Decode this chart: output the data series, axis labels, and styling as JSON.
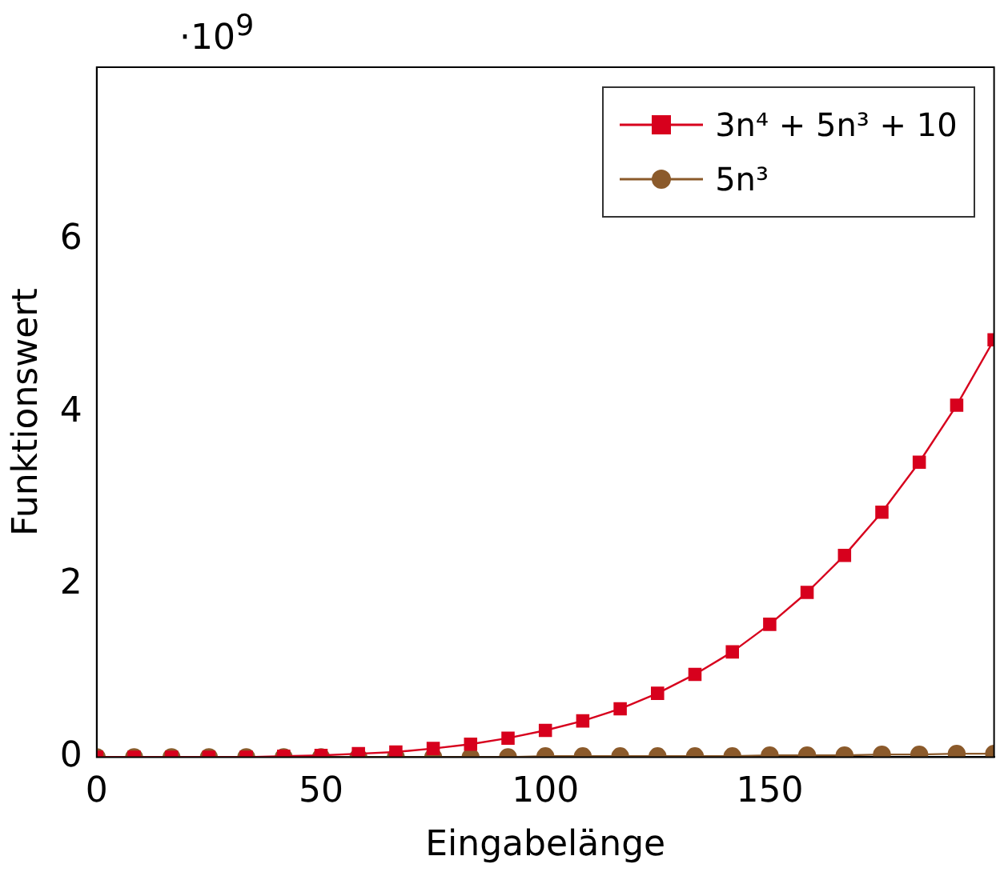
{
  "chart_data": {
    "type": "line",
    "xlabel": "Eingabelänge",
    "ylabel": "Funktionswert",
    "annotations": [
      "·10$^{9}$"
    ],
    "x": [
      0,
      8.33,
      16.67,
      25,
      33.33,
      41.67,
      50,
      58.33,
      66.67,
      75,
      83.33,
      91.67,
      100,
      108.33,
      116.67,
      125,
      133.33,
      141.67,
      150,
      158.33,
      166.67,
      175,
      183.33,
      191.67,
      200
    ],
    "series": [
      {
        "name": "3n⁴ + 5n³ + 10",
        "color": "#d7001d",
        "marker": "square",
        "values": [
          0,
          0,
          0,
          0,
          0,
          0.01,
          0.02,
          0.04,
          0.06,
          0.1,
          0.15,
          0.22,
          0.31,
          0.42,
          0.56,
          0.74,
          0.96,
          1.22,
          1.54,
          1.91,
          2.34,
          2.84,
          3.42,
          4.08,
          4.84
        ]
      },
      {
        "name": "5n³",
        "color": "#8b5a2b",
        "marker": "circle",
        "values": [
          0,
          0,
          0,
          0,
          0,
          0,
          0,
          0,
          0,
          0,
          0,
          0,
          0.01,
          0.01,
          0.01,
          0.01,
          0.01,
          0.01,
          0.02,
          0.02,
          0.02,
          0.03,
          0.03,
          0.04,
          0.04
        ]
      }
    ],
    "xlim": [
      0,
      200
    ],
    "xticks": [
      0,
      50,
      100,
      150
    ],
    "ylim": [
      0,
      8
    ],
    "yticks": [
      0,
      2,
      4,
      6
    ],
    "grid": false,
    "legend": "top right"
  }
}
